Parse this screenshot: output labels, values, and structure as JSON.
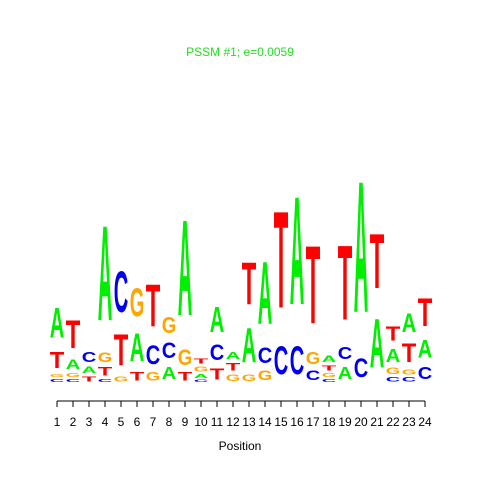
{
  "chart_data": {
    "type": "logo",
    "title": "PSSM #1; e=0.0059",
    "title_color": "#22dd22",
    "x_label": "Position",
    "x": [
      1,
      2,
      3,
      4,
      5,
      6,
      7,
      8,
      9,
      10,
      11,
      12,
      13,
      14,
      15,
      16,
      17,
      18,
      19,
      20,
      21,
      22,
      23,
      24
    ],
    "colors": {
      "A": "#00ee00",
      "C": "#0000ee",
      "G": "#ffa500",
      "T": "#ff0000"
    },
    "stacks": [
      [
        {
          "letter": "C",
          "height": 5
        },
        {
          "letter": "G",
          "height": 5
        },
        {
          "letter": "T",
          "height": 26
        },
        {
          "letter": "A",
          "height": 48
        }
      ],
      [
        {
          "letter": "C",
          "height": 5
        },
        {
          "letter": "G",
          "height": 6
        },
        {
          "letter": "A",
          "height": 15
        },
        {
          "letter": "T",
          "height": 45
        }
      ],
      [
        {
          "letter": "T",
          "height": 8
        },
        {
          "letter": "A",
          "height": 10
        },
        {
          "letter": "C",
          "height": 16
        }
      ],
      [
        {
          "letter": "C",
          "height": 5
        },
        {
          "letter": "T",
          "height": 13
        },
        {
          "letter": "G",
          "height": 15
        },
        {
          "letter": "A",
          "height": 152
        }
      ],
      [
        {
          "letter": "G",
          "height": 8
        },
        {
          "letter": "T",
          "height": 50
        },
        {
          "letter": "C",
          "height": 65
        }
      ],
      [
        {
          "letter": "T",
          "height": 13
        },
        {
          "letter": "A",
          "height": 45
        },
        {
          "letter": "G",
          "height": 45
        }
      ],
      [
        {
          "letter": "G",
          "height": 13
        },
        {
          "letter": "C",
          "height": 30
        },
        {
          "letter": "T",
          "height": 68
        }
      ],
      [
        {
          "letter": "A",
          "height": 20
        },
        {
          "letter": "C",
          "height": 25
        },
        {
          "letter": "G",
          "height": 26
        }
      ],
      [
        {
          "letter": "T",
          "height": 13
        },
        {
          "letter": "G",
          "height": 25
        },
        {
          "letter": "A",
          "height": 153
        }
      ],
      [
        {
          "letter": "C",
          "height": 4
        },
        {
          "letter": "A",
          "height": 6
        },
        {
          "letter": "G",
          "height": 8
        },
        {
          "letter": "T",
          "height": 8
        }
      ],
      [
        {
          "letter": "T",
          "height": 18
        },
        {
          "letter": "C",
          "height": 25
        },
        {
          "letter": "A",
          "height": 40
        }
      ],
      [
        {
          "letter": "G",
          "height": 10
        },
        {
          "letter": "T",
          "height": 12
        },
        {
          "letter": "A",
          "height": 11
        }
      ],
      [
        {
          "letter": "G",
          "height": 10
        },
        {
          "letter": "A",
          "height": 55
        },
        {
          "letter": "T",
          "height": 68
        }
      ],
      [
        {
          "letter": "G",
          "height": 15
        },
        {
          "letter": "C",
          "height": 25
        },
        {
          "letter": "A",
          "height": 100
        }
      ],
      [
        {
          "letter": "C",
          "height": 45
        },
        {
          "letter": "T",
          "height": 155
        }
      ],
      [
        {
          "letter": "C",
          "height": 45
        },
        {
          "letter": "A",
          "height": 173
        }
      ],
      [
        {
          "letter": "C",
          "height": 15
        },
        {
          "letter": "G",
          "height": 20
        },
        {
          "letter": "T",
          "height": 125
        }
      ],
      [
        {
          "letter": "C",
          "height": 5
        },
        {
          "letter": "G",
          "height": 6
        },
        {
          "letter": "T",
          "height": 8
        },
        {
          "letter": "A",
          "height": 10
        }
      ],
      [
        {
          "letter": "A",
          "height": 20
        },
        {
          "letter": "C",
          "height": 20
        },
        {
          "letter": "T",
          "height": 120
        }
      ],
      [
        {
          "letter": "C",
          "height": 30
        },
        {
          "letter": "A",
          "height": 210
        }
      ],
      [
        {
          "letter": "A",
          "height": 78
        },
        {
          "letter": "T",
          "height": 87
        }
      ],
      [
        {
          "letter": "C",
          "height": 7
        },
        {
          "letter": "G",
          "height": 10
        },
        {
          "letter": "A",
          "height": 21
        },
        {
          "letter": "T",
          "height": 23
        }
      ],
      [
        {
          "letter": "C",
          "height": 7
        },
        {
          "letter": "G",
          "height": 8
        },
        {
          "letter": "T",
          "height": 30
        },
        {
          "letter": "A",
          "height": 30
        }
      ],
      [
        {
          "letter": "C",
          "height": 20
        },
        {
          "letter": "A",
          "height": 28
        },
        {
          "letter": "T",
          "height": 45
        }
      ]
    ]
  }
}
